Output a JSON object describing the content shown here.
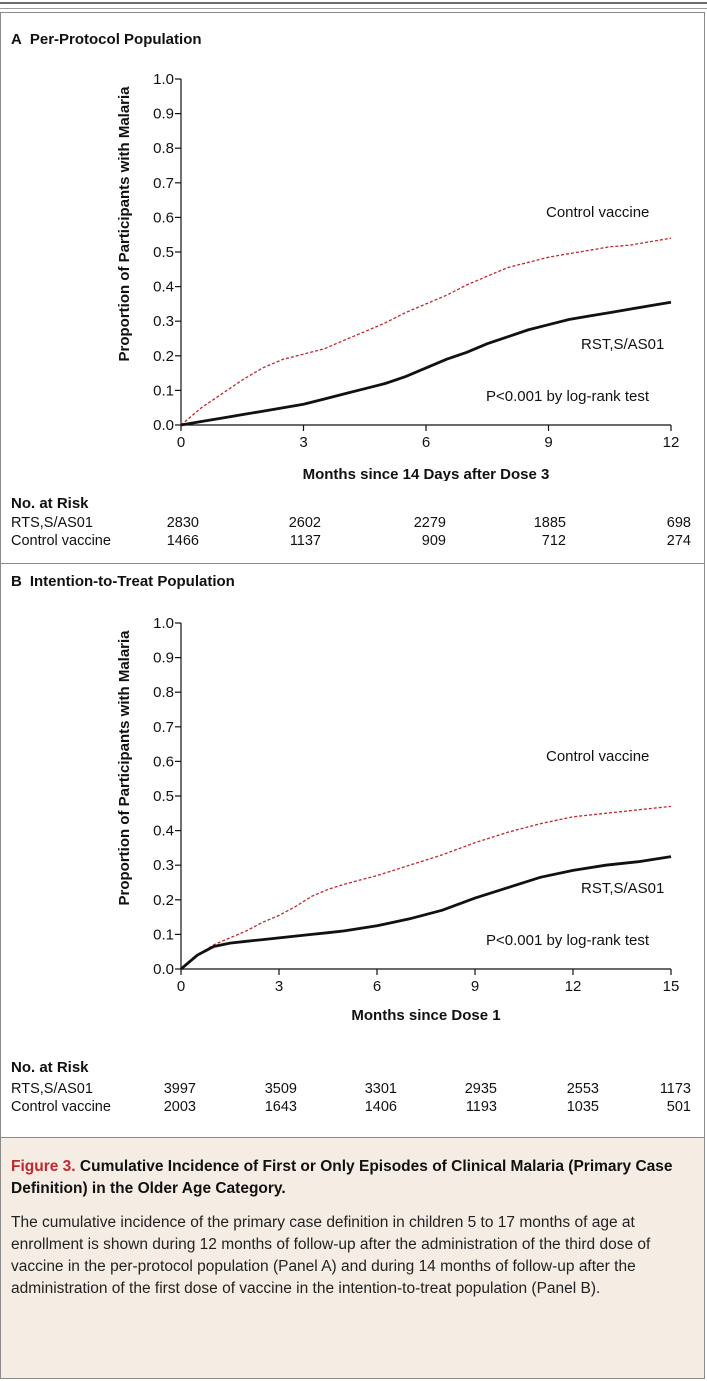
{
  "panelA": {
    "letter": "A",
    "title": "Per-Protocol Population",
    "ylabel": "Proportion of Participants with Malaria",
    "xlabel": "Months since 14 Days after Dose 3",
    "control_label": "Control vaccine",
    "vaccine_label": "RST,S/AS01",
    "pvalue": "P<0.001 by log-rank test",
    "risk_title": "No. at Risk",
    "risk_rows": [
      {
        "label": "RTS,S/AS01",
        "values": [
          "2830",
          "2602",
          "2279",
          "1885",
          "698"
        ]
      },
      {
        "label": "Control vaccine",
        "values": [
          "1466",
          "1137",
          "909",
          "712",
          "274"
        ]
      }
    ]
  },
  "panelB": {
    "letter": "B",
    "title": "Intention-to-Treat Population",
    "ylabel": "Proportion of Participants with Malaria",
    "xlabel": "Months since Dose 1",
    "control_label": "Control vaccine",
    "vaccine_label": "RST,S/AS01",
    "pvalue": "P<0.001 by log-rank test",
    "risk_title": "No. at Risk",
    "risk_rows": [
      {
        "label": "RTS,S/AS01",
        "values": [
          "3997",
          "3509",
          "3301",
          "2935",
          "2553",
          "1173"
        ]
      },
      {
        "label": "Control vaccine",
        "values": [
          "2003",
          "1643",
          "1406",
          "1193",
          "1035",
          "501"
        ]
      }
    ]
  },
  "caption": {
    "figure_label": "Figure 3.",
    "title": "Cumulative Incidence of First or Only Episodes of Clinical Malaria (Primary Case Definition) in the Older Age Category.",
    "body": "The cumulative incidence of the primary case definition in children 5 to 17 months of age at enrollment is shown during 12 months of follow-up after the administration of the third dose of vaccine in the per-protocol population (Panel A) and during 14 months of follow-up after the administration of the first dose of vaccine in the intention-to-treat population (Panel B)."
  },
  "colors": {
    "control": "#c1272d",
    "vaccine": "#111111",
    "caption_bg": "#f5ede4",
    "figure_label": "#c1272d"
  },
  "chart_data": [
    {
      "type": "line",
      "title": "Per-Protocol Population",
      "xlabel": "Months since 14 Days after Dose 3",
      "ylabel": "Proportion of Participants with Malaria",
      "xlim": [
        0,
        12
      ],
      "ylim": [
        0,
        1.0
      ],
      "xticks": [
        0,
        3,
        6,
        9,
        12
      ],
      "yticks": [
        0.0,
        0.1,
        0.2,
        0.3,
        0.4,
        0.5,
        0.6,
        0.7,
        0.8,
        0.9,
        1.0
      ],
      "series": [
        {
          "name": "Control vaccine",
          "style": "dashed",
          "color": "#c1272d",
          "x": [
            0,
            0.5,
            1,
            1.5,
            2,
            2.5,
            3,
            3.5,
            4,
            4.5,
            5,
            5.5,
            6,
            6.5,
            7,
            7.5,
            8,
            8.5,
            9,
            9.5,
            10,
            10.5,
            11,
            11.5,
            12
          ],
          "y": [
            0,
            0.05,
            0.09,
            0.13,
            0.165,
            0.19,
            0.205,
            0.22,
            0.245,
            0.27,
            0.295,
            0.325,
            0.35,
            0.375,
            0.405,
            0.43,
            0.455,
            0.47,
            0.485,
            0.495,
            0.505,
            0.515,
            0.52,
            0.53,
            0.54
          ]
        },
        {
          "name": "RST,S/AS01",
          "style": "solid",
          "color": "#111111",
          "x": [
            0,
            0.5,
            1,
            1.5,
            2,
            2.5,
            3,
            3.5,
            4,
            4.5,
            5,
            5.5,
            6,
            6.5,
            7,
            7.5,
            8,
            8.5,
            9,
            9.5,
            10,
            10.5,
            11,
            11.5,
            12
          ],
          "y": [
            0,
            0.01,
            0.02,
            0.03,
            0.04,
            0.05,
            0.06,
            0.075,
            0.09,
            0.105,
            0.12,
            0.14,
            0.165,
            0.19,
            0.21,
            0.235,
            0.255,
            0.275,
            0.29,
            0.305,
            0.315,
            0.325,
            0.335,
            0.345,
            0.355
          ]
        }
      ],
      "annotations": [
        "P<0.001 by log-rank test"
      ]
    },
    {
      "type": "line",
      "title": "Intention-to-Treat Population",
      "xlabel": "Months since Dose 1",
      "ylabel": "Proportion of Participants with Malaria",
      "xlim": [
        0,
        15
      ],
      "ylim": [
        0,
        1.0
      ],
      "xticks": [
        0,
        3,
        6,
        9,
        12,
        15
      ],
      "yticks": [
        0.0,
        0.1,
        0.2,
        0.3,
        0.4,
        0.5,
        0.6,
        0.7,
        0.8,
        0.9,
        1.0
      ],
      "series": [
        {
          "name": "Control vaccine",
          "style": "dashed",
          "color": "#c1272d",
          "x": [
            0,
            0.5,
            1,
            1.5,
            2,
            2.5,
            3,
            3.5,
            4,
            4.5,
            5,
            6,
            7,
            8,
            9,
            10,
            11,
            12,
            13,
            14,
            15
          ],
          "y": [
            0,
            0.04,
            0.07,
            0.09,
            0.11,
            0.135,
            0.155,
            0.18,
            0.21,
            0.23,
            0.245,
            0.27,
            0.3,
            0.33,
            0.365,
            0.395,
            0.42,
            0.44,
            0.45,
            0.46,
            0.47
          ]
        },
        {
          "name": "RST,S/AS01",
          "style": "solid",
          "color": "#111111",
          "x": [
            0,
            0.5,
            1,
            1.5,
            2,
            2.5,
            3,
            3.5,
            4,
            4.5,
            5,
            6,
            7,
            8,
            9,
            10,
            11,
            12,
            13,
            14,
            15
          ],
          "y": [
            0,
            0.04,
            0.065,
            0.075,
            0.08,
            0.085,
            0.09,
            0.095,
            0.1,
            0.105,
            0.11,
            0.125,
            0.145,
            0.17,
            0.205,
            0.235,
            0.265,
            0.285,
            0.3,
            0.31,
            0.325
          ]
        }
      ],
      "annotations": [
        "P<0.001 by log-rank test"
      ]
    }
  ]
}
